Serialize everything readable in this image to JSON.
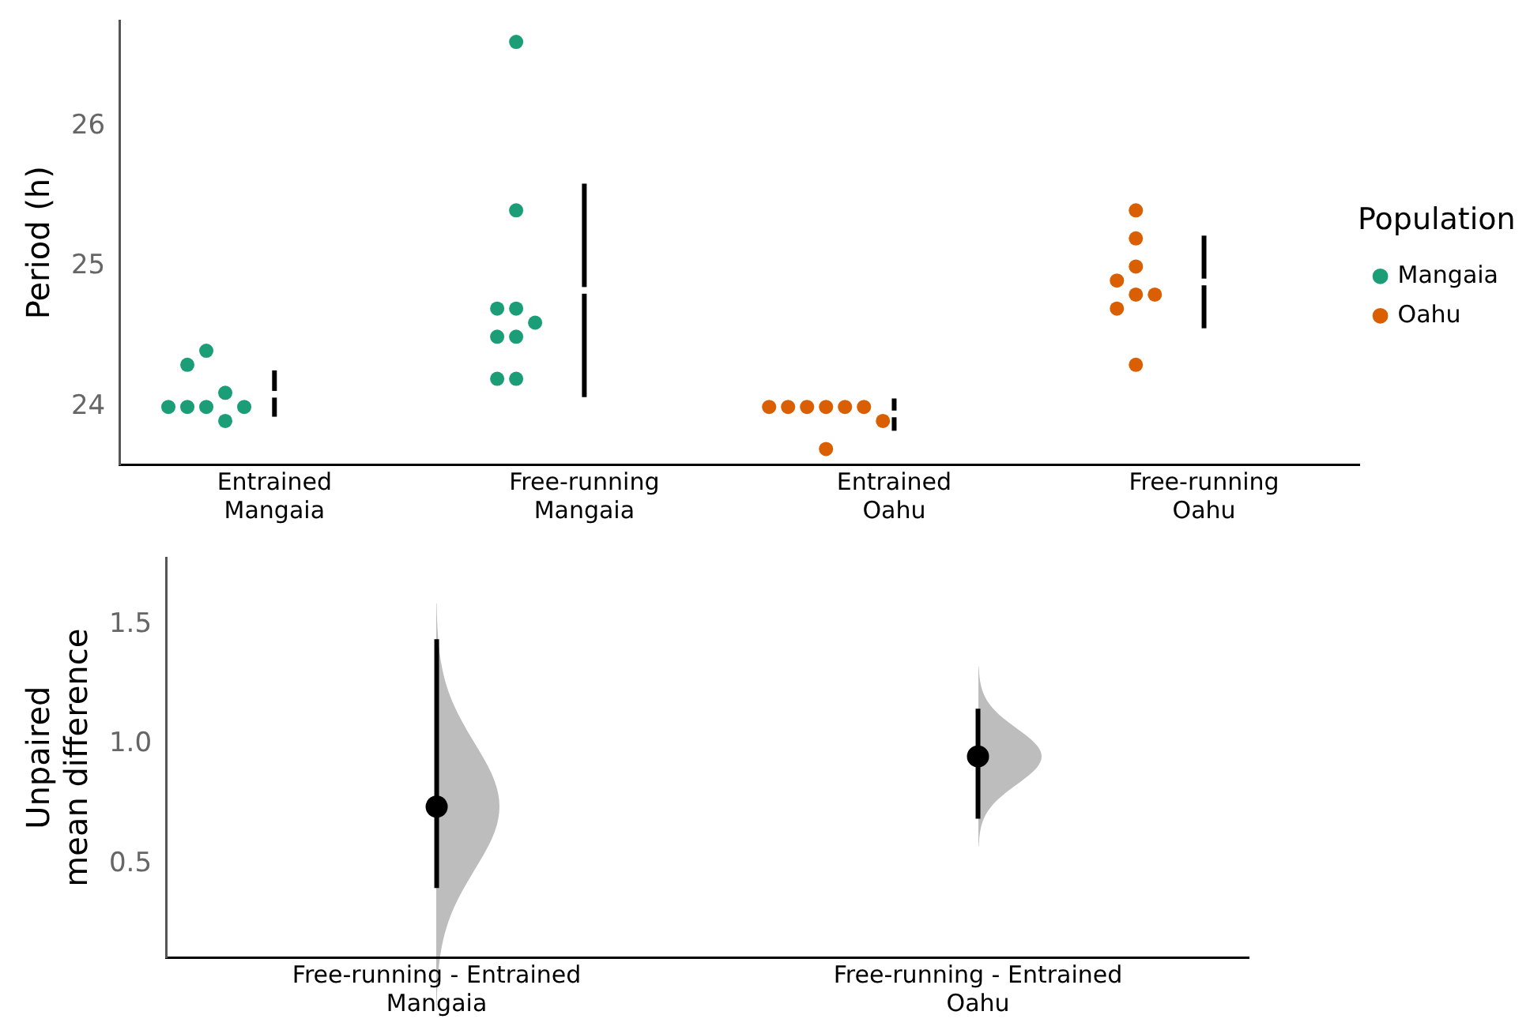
{
  "chart_data": [
    {
      "type": "scatter",
      "ylabel": "Period (h)",
      "categories": [
        "Entrained\nMangaia",
        "Free-running\nMangaia",
        "Entrained\nOahu",
        "Free-running\nOahu"
      ],
      "ylim": [
        23.59,
        26.75
      ],
      "yticks": [
        24,
        25,
        26
      ],
      "grid": false,
      "legend": "right",
      "legend_title": "Population",
      "marker": "circle",
      "series": [
        {
          "name": "Mangaia",
          "color": "#1b9e77",
          "x": [
            "Entrained\nMangaia",
            "Entrained\nMangaia",
            "Entrained\nMangaia",
            "Entrained\nMangaia",
            "Entrained\nMangaia",
            "Entrained\nMangaia",
            "Entrained\nMangaia",
            "Entrained\nMangaia",
            "Free-running\nMangaia",
            "Free-running\nMangaia",
            "Free-running\nMangaia",
            "Free-running\nMangaia",
            "Free-running\nMangaia",
            "Free-running\nMangaia",
            "Free-running\nMangaia",
            "Free-running\nMangaia",
            "Free-running\nMangaia"
          ],
          "values": [
            24.0,
            24.0,
            24.4,
            24.1,
            23.9,
            24.3,
            24.0,
            24.0,
            26.6,
            25.4,
            24.7,
            24.7,
            24.6,
            24.5,
            24.5,
            24.2,
            24.2
          ]
        },
        {
          "name": "Oahu",
          "color": "#d95f02",
          "x": [
            "Entrained\nOahu",
            "Entrained\nOahu",
            "Entrained\nOahu",
            "Entrained\nOahu",
            "Entrained\nOahu",
            "Entrained\nOahu",
            "Entrained\nOahu",
            "Entrained\nOahu",
            "Free-running\nOahu",
            "Free-running\nOahu",
            "Free-running\nOahu",
            "Free-running\nOahu",
            "Free-running\nOahu",
            "Free-running\nOahu",
            "Free-running\nOahu",
            "Free-running\nOahu"
          ],
          "values": [
            24.0,
            24.0,
            24.0,
            24.0,
            24.0,
            24.0,
            23.9,
            23.7,
            25.4,
            25.2,
            25.0,
            24.9,
            24.8,
            24.8,
            24.7,
            24.3
          ]
        },
        {
          "color": "#ffffff",
          "marker": "square",
          "x": [
            "Entrained\nMangaia",
            "Free-running\nMangaia",
            "Entrained\nOahu",
            "Free-running\nOahu"
          ],
          "values": [
            24.09,
            24.83,
            23.95,
            24.89
          ],
          "errors": [
            [
              23.93,
              24.26
            ],
            [
              24.07,
              25.59
            ],
            [
              23.83,
              24.06
            ],
            [
              24.56,
              25.22
            ]
          ]
        }
      ]
    },
    {
      "type": "scatter",
      "ylabel": "Unpaired\nmean difference",
      "categories": [
        "Free-running - Entrained\nMangaia",
        "Free-running - Entrained\nOahu"
      ],
      "ylim": [
        0.11,
        1.78
      ],
      "yticks": [
        0.5,
        {
          "value": 1,
          "label": "1.0"
        },
        1.5
      ],
      "grid": false,
      "legend": false,
      "marker": "circle",
      "series": [
        {
          "color": "#000000",
          "x": [
            "Free-running - Entrained\nMangaia",
            "Free-running - Entrained\nOahu"
          ],
          "values": [
            0.74,
            0.95
          ],
          "errors": [
            [
              0.4,
              1.44
            ],
            [
              0.69,
              1.15
            ]
          ]
        }
      ]
    }
  ]
}
